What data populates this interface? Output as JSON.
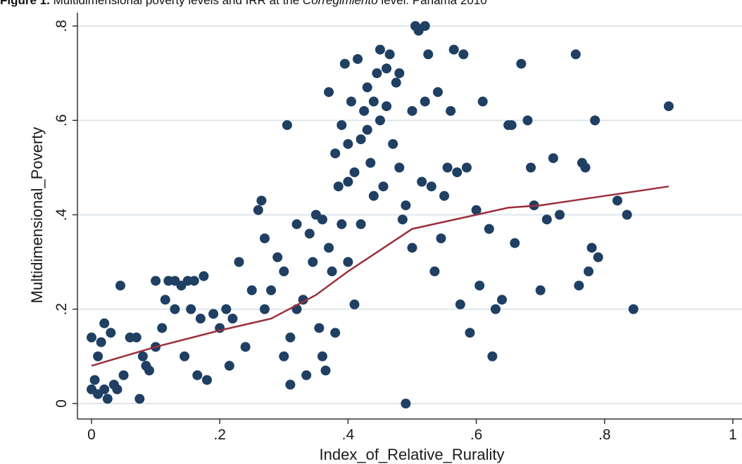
{
  "caption": {
    "prefix": "Figure 1.",
    "text_before": " Multidimensional poverty levels and IRR at the ",
    "italic": "Corregimiento",
    "text_after": " level: Panama 2010"
  },
  "chart_data": {
    "type": "scatter",
    "xlabel": "Index_of_Relative_Rurality",
    "ylabel": "Multidimensional_Poverty",
    "xlim": [
      0,
      1
    ],
    "ylim": [
      0,
      0.8
    ],
    "xticks": [
      0,
      0.2,
      0.4,
      0.6,
      0.8,
      1
    ],
    "xtick_labels": [
      "0",
      ".2",
      ".4",
      ".6",
      ".8",
      "1"
    ],
    "yticks": [
      0,
      0.2,
      0.4,
      0.6,
      0.8
    ],
    "ytick_labels": [
      "0",
      ".2",
      ".4",
      ".6",
      ".8"
    ],
    "grid": "horizontal",
    "colors": {
      "points": "#1f3f63",
      "fit_line": "#9b2f3c",
      "grid": "#dfe6ea",
      "axis": "#333333"
    },
    "series": [
      {
        "kind": "points",
        "points": [
          [
            0.0,
            0.14
          ],
          [
            0.01,
            0.02
          ],
          [
            0.005,
            0.05
          ],
          [
            0.0,
            0.03
          ],
          [
            0.01,
            0.1
          ],
          [
            0.02,
            0.17
          ],
          [
            0.03,
            0.15
          ],
          [
            0.015,
            0.13
          ],
          [
            0.02,
            0.03
          ],
          [
            0.035,
            0.04
          ],
          [
            0.045,
            0.25
          ],
          [
            0.04,
            0.03
          ],
          [
            0.025,
            0.01
          ],
          [
            0.05,
            0.06
          ],
          [
            0.06,
            0.14
          ],
          [
            0.07,
            0.14
          ],
          [
            0.075,
            0.01
          ],
          [
            0.08,
            0.1
          ],
          [
            0.085,
            0.08
          ],
          [
            0.09,
            0.07
          ],
          [
            0.1,
            0.12
          ],
          [
            0.1,
            0.26
          ],
          [
            0.11,
            0.16
          ],
          [
            0.115,
            0.22
          ],
          [
            0.12,
            0.26
          ],
          [
            0.13,
            0.2
          ],
          [
            0.13,
            0.26
          ],
          [
            0.14,
            0.25
          ],
          [
            0.145,
            0.1
          ],
          [
            0.15,
            0.26
          ],
          [
            0.155,
            0.2
          ],
          [
            0.16,
            0.26
          ],
          [
            0.165,
            0.06
          ],
          [
            0.17,
            0.18
          ],
          [
            0.175,
            0.27
          ],
          [
            0.18,
            0.05
          ],
          [
            0.19,
            0.19
          ],
          [
            0.2,
            0.16
          ],
          [
            0.21,
            0.2
          ],
          [
            0.215,
            0.08
          ],
          [
            0.22,
            0.18
          ],
          [
            0.23,
            0.3
          ],
          [
            0.24,
            0.12
          ],
          [
            0.25,
            0.24
          ],
          [
            0.26,
            0.41
          ],
          [
            0.265,
            0.43
          ],
          [
            0.27,
            0.35
          ],
          [
            0.27,
            0.2
          ],
          [
            0.28,
            0.24
          ],
          [
            0.29,
            0.31
          ],
          [
            0.3,
            0.28
          ],
          [
            0.3,
            0.1
          ],
          [
            0.305,
            0.59
          ],
          [
            0.31,
            0.04
          ],
          [
            0.31,
            0.14
          ],
          [
            0.32,
            0.38
          ],
          [
            0.32,
            0.2
          ],
          [
            0.33,
            0.22
          ],
          [
            0.335,
            0.06
          ],
          [
            0.34,
            0.36
          ],
          [
            0.345,
            0.3
          ],
          [
            0.35,
            0.4
          ],
          [
            0.355,
            0.16
          ],
          [
            0.36,
            0.39
          ],
          [
            0.36,
            0.1
          ],
          [
            0.365,
            0.07
          ],
          [
            0.37,
            0.66
          ],
          [
            0.37,
            0.33
          ],
          [
            0.375,
            0.28
          ],
          [
            0.38,
            0.53
          ],
          [
            0.38,
            0.15
          ],
          [
            0.385,
            0.46
          ],
          [
            0.39,
            0.59
          ],
          [
            0.39,
            0.38
          ],
          [
            0.395,
            0.72
          ],
          [
            0.4,
            0.55
          ],
          [
            0.4,
            0.47
          ],
          [
            0.4,
            0.3
          ],
          [
            0.405,
            0.64
          ],
          [
            0.41,
            0.49
          ],
          [
            0.41,
            0.21
          ],
          [
            0.415,
            0.73
          ],
          [
            0.42,
            0.56
          ],
          [
            0.42,
            0.38
          ],
          [
            0.425,
            0.62
          ],
          [
            0.43,
            0.67
          ],
          [
            0.43,
            0.58
          ],
          [
            0.435,
            0.51
          ],
          [
            0.44,
            0.64
          ],
          [
            0.44,
            0.44
          ],
          [
            0.445,
            0.7
          ],
          [
            0.45,
            0.75
          ],
          [
            0.45,
            0.6
          ],
          [
            0.455,
            0.46
          ],
          [
            0.46,
            0.71
          ],
          [
            0.46,
            0.63
          ],
          [
            0.465,
            0.74
          ],
          [
            0.47,
            0.55
          ],
          [
            0.475,
            0.68
          ],
          [
            0.48,
            0.7
          ],
          [
            0.48,
            0.5
          ],
          [
            0.485,
            0.39
          ],
          [
            0.49,
            0.0
          ],
          [
            0.49,
            0.42
          ],
          [
            0.5,
            0.62
          ],
          [
            0.5,
            0.33
          ],
          [
            0.505,
            0.8
          ],
          [
            0.51,
            0.79
          ],
          [
            0.515,
            0.47
          ],
          [
            0.52,
            0.8
          ],
          [
            0.52,
            0.64
          ],
          [
            0.525,
            0.74
          ],
          [
            0.53,
            0.46
          ],
          [
            0.535,
            0.28
          ],
          [
            0.54,
            0.66
          ],
          [
            0.545,
            0.35
          ],
          [
            0.55,
            0.44
          ],
          [
            0.555,
            0.5
          ],
          [
            0.56,
            0.62
          ],
          [
            0.565,
            0.75
          ],
          [
            0.57,
            0.49
          ],
          [
            0.575,
            0.21
          ],
          [
            0.58,
            0.74
          ],
          [
            0.585,
            0.5
          ],
          [
            0.59,
            0.15
          ],
          [
            0.6,
            0.41
          ],
          [
            0.605,
            0.25
          ],
          [
            0.61,
            0.64
          ],
          [
            0.62,
            0.37
          ],
          [
            0.625,
            0.1
          ],
          [
            0.63,
            0.2
          ],
          [
            0.64,
            0.22
          ],
          [
            0.65,
            0.59
          ],
          [
            0.655,
            0.59
          ],
          [
            0.66,
            0.34
          ],
          [
            0.67,
            0.72
          ],
          [
            0.68,
            0.6
          ],
          [
            0.685,
            0.5
          ],
          [
            0.69,
            0.42
          ],
          [
            0.7,
            0.24
          ],
          [
            0.71,
            0.39
          ],
          [
            0.72,
            0.52
          ],
          [
            0.73,
            0.4
          ],
          [
            0.755,
            0.74
          ],
          [
            0.76,
            0.25
          ],
          [
            0.765,
            0.51
          ],
          [
            0.77,
            0.5
          ],
          [
            0.775,
            0.28
          ],
          [
            0.78,
            0.33
          ],
          [
            0.785,
            0.6
          ],
          [
            0.79,
            0.31
          ],
          [
            0.82,
            0.43
          ],
          [
            0.835,
            0.4
          ],
          [
            0.845,
            0.2
          ],
          [
            0.9,
            0.63
          ]
        ]
      },
      {
        "kind": "fit_line",
        "points": [
          [
            0.0,
            0.08
          ],
          [
            0.1,
            0.12
          ],
          [
            0.2,
            0.155
          ],
          [
            0.28,
            0.18
          ],
          [
            0.35,
            0.23
          ],
          [
            0.4,
            0.28
          ],
          [
            0.45,
            0.325
          ],
          [
            0.5,
            0.37
          ],
          [
            0.6,
            0.4
          ],
          [
            0.65,
            0.415
          ],
          [
            0.7,
            0.42
          ],
          [
            0.8,
            0.44
          ],
          [
            0.9,
            0.46
          ]
        ]
      }
    ]
  }
}
